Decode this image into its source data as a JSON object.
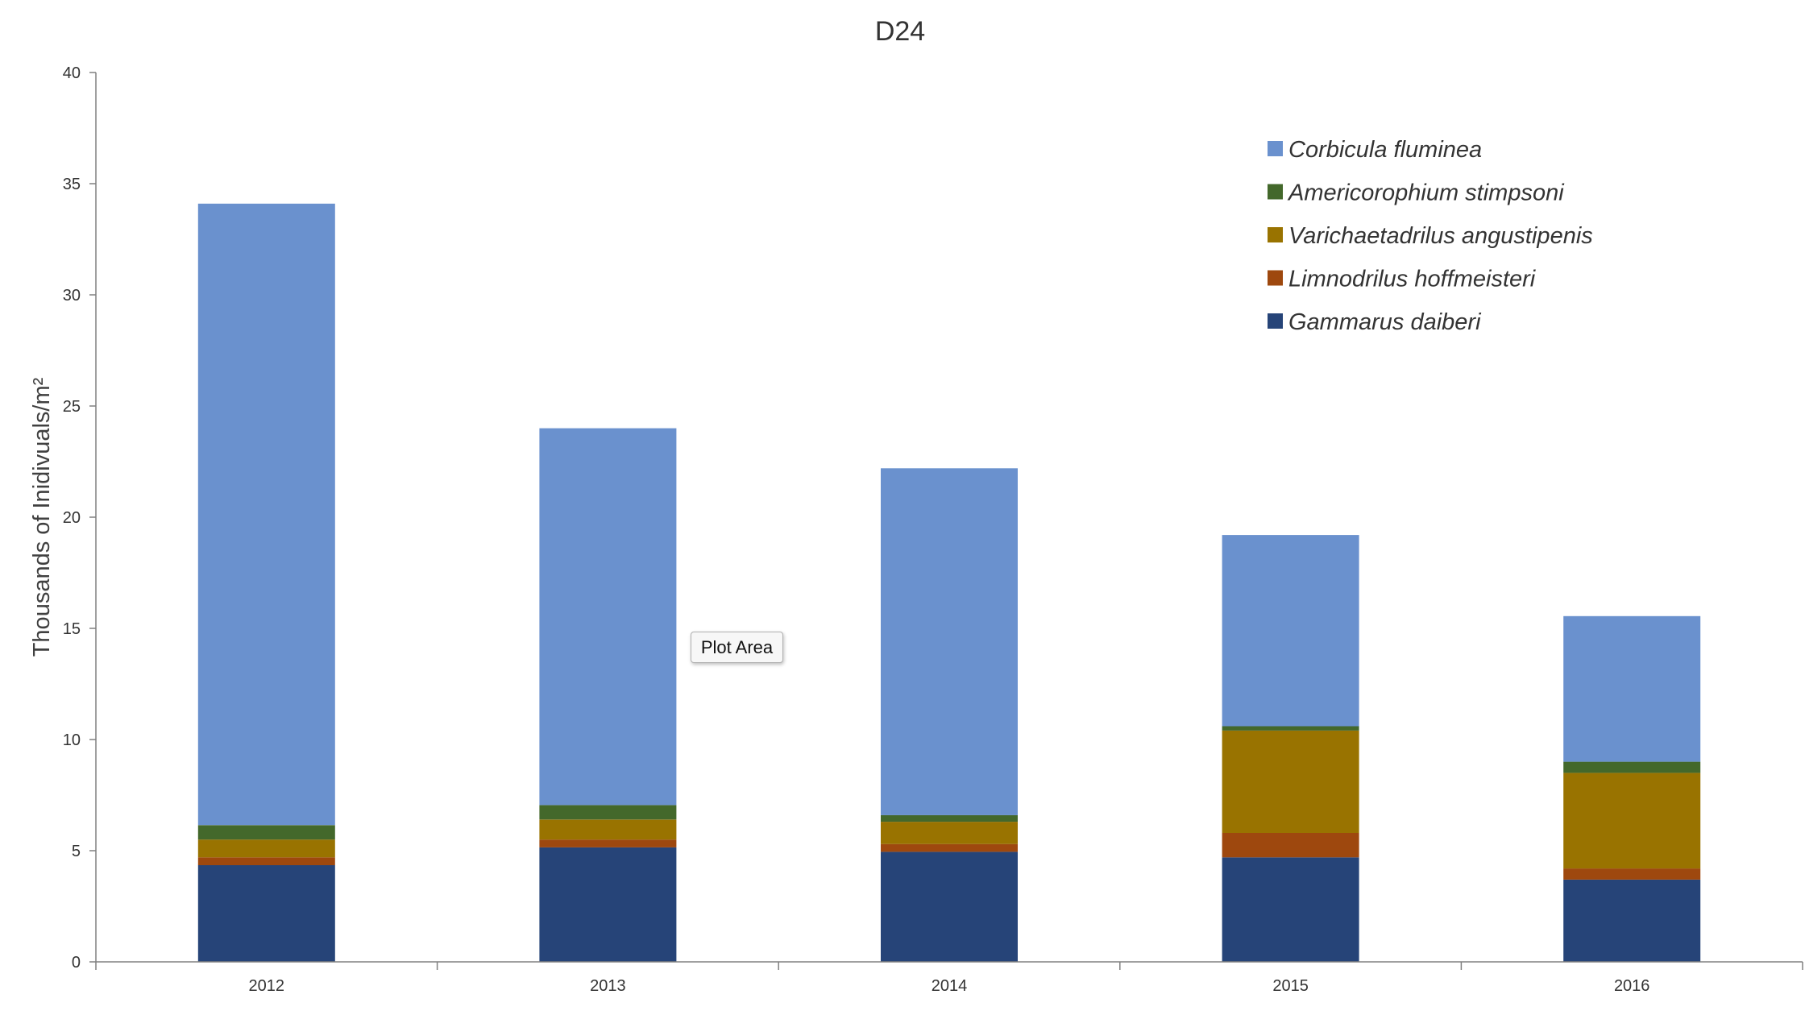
{
  "chart_data": {
    "type": "bar",
    "stacked": true,
    "title": "D24",
    "ylabel": "Thousands of Inidivuals/m²",
    "xlabel": "",
    "categories": [
      "2012",
      "2013",
      "2014",
      "2015",
      "2016"
    ],
    "ylim": [
      0,
      40
    ],
    "yticks": [
      0,
      5,
      10,
      15,
      20,
      25,
      30,
      35,
      40
    ],
    "grid": false,
    "legend_position": "top-right",
    "series": [
      {
        "name": "Gammarus daiberi",
        "color": "#264478",
        "values": [
          4.35,
          5.15,
          4.95,
          4.7,
          3.7
        ]
      },
      {
        "name": "Limnodrilus hoffmeisteri",
        "color": "#9E480E",
        "values": [
          0.35,
          0.35,
          0.35,
          1.1,
          0.5
        ]
      },
      {
        "name": "Varichaetadrilus angustipenis",
        "color": "#997300",
        "values": [
          0.8,
          0.9,
          1.0,
          4.6,
          4.3
        ]
      },
      {
        "name": "Americorophium stimpsoni",
        "color": "#43682B",
        "values": [
          0.65,
          0.65,
          0.3,
          0.2,
          0.5
        ]
      },
      {
        "name": "Corbicula fluminea",
        "color": "#6A91CE",
        "values": [
          27.95,
          16.95,
          15.6,
          8.6,
          6.55
        ]
      }
    ]
  },
  "tooltip": {
    "text": "Plot Area"
  }
}
